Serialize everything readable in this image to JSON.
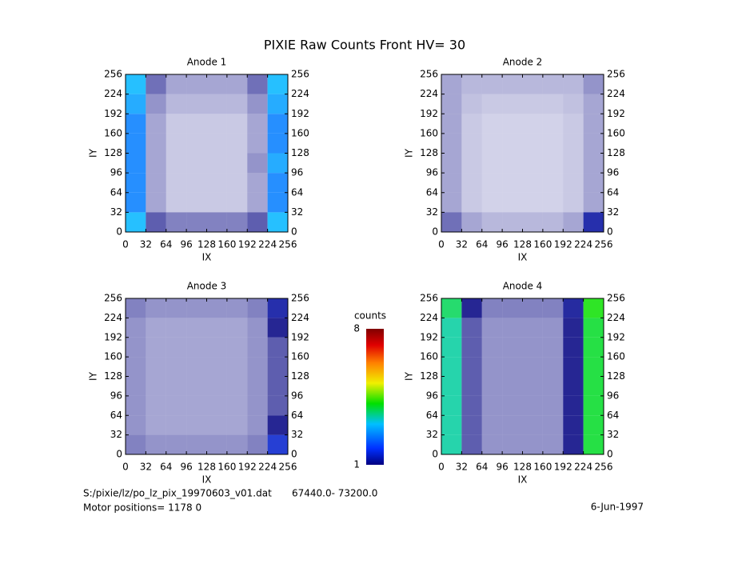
{
  "title": "PIXIE Raw Counts Front HV= 30",
  "chart_data": [
    {
      "type": "heatmap",
      "title": "Anode 1",
      "xlabel": "IX",
      "ylabel": "IY",
      "xlim": [
        0,
        256
      ],
      "ylim": [
        0,
        256
      ],
      "xticks": [
        0,
        32,
        64,
        96,
        128,
        160,
        192,
        224,
        256
      ],
      "yticks": [
        0,
        32,
        64,
        96,
        128,
        160,
        192,
        224,
        256
      ],
      "z": [
        [
          3,
          0.9,
          0.7,
          0.7,
          0.7,
          0.7,
          0.9,
          3
        ],
        [
          2.5,
          0.5,
          0.3,
          0.3,
          0.3,
          0.3,
          0.5,
          2.5
        ],
        [
          2.5,
          0.5,
          0.3,
          0.3,
          0.3,
          0.3,
          0.5,
          2.5
        ],
        [
          2.5,
          0.5,
          0.3,
          0.3,
          0.3,
          0.3,
          0.6,
          2.8
        ],
        [
          2.5,
          0.5,
          0.3,
          0.3,
          0.3,
          0.3,
          0.5,
          2.5
        ],
        [
          2.5,
          0.5,
          0.3,
          0.3,
          0.3,
          0.3,
          0.5,
          2.5
        ],
        [
          2.8,
          0.6,
          0.4,
          0.4,
          0.4,
          0.4,
          0.6,
          2.8
        ],
        [
          3,
          0.8,
          0.5,
          0.5,
          0.5,
          0.5,
          0.8,
          3
        ]
      ]
    },
    {
      "type": "heatmap",
      "title": "Anode 2",
      "xlabel": "IX",
      "ylabel": "IY",
      "xlim": [
        0,
        256
      ],
      "ylim": [
        0,
        256
      ],
      "xticks": [
        0,
        32,
        64,
        96,
        128,
        160,
        192,
        224,
        256
      ],
      "yticks": [
        0,
        32,
        64,
        96,
        128,
        160,
        192,
        224,
        256
      ],
      "z": [
        [
          0.8,
          0.5,
          0.4,
          0.4,
          0.4,
          0.4,
          0.5,
          1.2
        ],
        [
          0.5,
          0.3,
          0.25,
          0.25,
          0.25,
          0.25,
          0.3,
          0.5
        ],
        [
          0.5,
          0.3,
          0.25,
          0.25,
          0.25,
          0.25,
          0.3,
          0.5
        ],
        [
          0.5,
          0.3,
          0.25,
          0.25,
          0.25,
          0.25,
          0.3,
          0.5
        ],
        [
          0.5,
          0.3,
          0.25,
          0.25,
          0.25,
          0.25,
          0.3,
          0.5
        ],
        [
          0.5,
          0.3,
          0.25,
          0.25,
          0.25,
          0.25,
          0.3,
          0.5
        ],
        [
          0.5,
          0.35,
          0.3,
          0.3,
          0.3,
          0.3,
          0.35,
          0.5
        ],
        [
          0.5,
          0.4,
          0.4,
          0.4,
          0.4,
          0.4,
          0.4,
          0.6
        ]
      ]
    },
    {
      "type": "heatmap",
      "title": "Anode 3",
      "xlabel": "IX",
      "ylabel": "IY",
      "xlim": [
        0,
        256
      ],
      "ylim": [
        0,
        256
      ],
      "xticks": [
        0,
        32,
        64,
        96,
        128,
        160,
        192,
        224,
        256
      ],
      "yticks": [
        0,
        32,
        64,
        96,
        128,
        160,
        192,
        224,
        256
      ],
      "z": [
        [
          0.7,
          0.6,
          0.6,
          0.6,
          0.6,
          0.6,
          0.7,
          1.5
        ],
        [
          0.6,
          0.5,
          0.5,
          0.5,
          0.5,
          0.5,
          0.6,
          1
        ],
        [
          0.6,
          0.5,
          0.5,
          0.5,
          0.5,
          0.5,
          0.6,
          0.9
        ],
        [
          0.6,
          0.5,
          0.5,
          0.5,
          0.5,
          0.5,
          0.6,
          0.9
        ],
        [
          0.6,
          0.5,
          0.5,
          0.5,
          0.5,
          0.5,
          0.6,
          0.9
        ],
        [
          0.6,
          0.5,
          0.5,
          0.5,
          0.5,
          0.5,
          0.6,
          0.9
        ],
        [
          0.6,
          0.5,
          0.5,
          0.5,
          0.5,
          0.5,
          0.6,
          1
        ],
        [
          0.7,
          0.6,
          0.6,
          0.6,
          0.6,
          0.6,
          0.7,
          1.2
        ]
      ]
    },
    {
      "type": "heatmap",
      "title": "Anode 4",
      "xlabel": "IX",
      "ylabel": "IY",
      "xlim": [
        0,
        256
      ],
      "ylim": [
        0,
        256
      ],
      "xticks": [
        0,
        32,
        64,
        96,
        128,
        160,
        192,
        224,
        256
      ],
      "yticks": [
        0,
        32,
        64,
        96,
        128,
        160,
        192,
        224,
        256
      ],
      "z": [
        [
          3.5,
          0.9,
          0.6,
          0.6,
          0.6,
          0.6,
          1,
          4
        ],
        [
          3.5,
          0.9,
          0.6,
          0.6,
          0.6,
          0.6,
          1,
          4
        ],
        [
          3.5,
          0.9,
          0.6,
          0.6,
          0.6,
          0.6,
          1,
          4
        ],
        [
          3.5,
          0.9,
          0.6,
          0.6,
          0.6,
          0.6,
          1,
          4
        ],
        [
          3.5,
          0.9,
          0.6,
          0.6,
          0.6,
          0.6,
          1,
          4
        ],
        [
          3.5,
          0.9,
          0.6,
          0.6,
          0.6,
          0.6,
          1,
          4
        ],
        [
          3.5,
          0.9,
          0.6,
          0.6,
          0.6,
          0.6,
          1,
          4
        ],
        [
          3.8,
          1,
          0.7,
          0.7,
          0.7,
          0.7,
          1.1,
          4.2
        ]
      ]
    }
  ],
  "colorbar": {
    "label": "counts",
    "zlim": [
      1,
      8
    ],
    "ticks": [
      1,
      8
    ]
  },
  "footer": {
    "file": "S:/pixie/lz/po_lz_pix_19970603_v01.dat",
    "range": "67440.0- 73200.0",
    "motor": "Motor positions= 1178 0",
    "date": "6-Jun-1997"
  }
}
